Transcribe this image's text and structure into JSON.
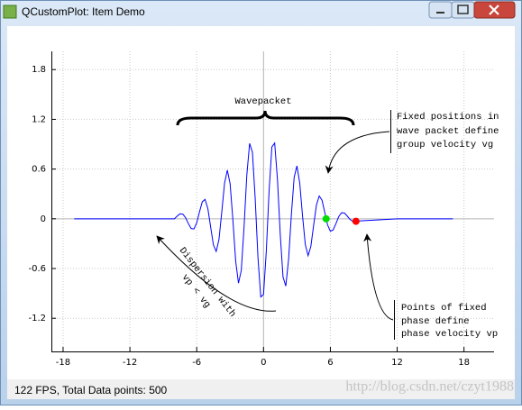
{
  "window": {
    "title": "QCustomPlot: Item Demo"
  },
  "chart_data": {
    "type": "line",
    "x": [
      -17,
      -12,
      -8,
      -7.75,
      -7.5,
      -7.25,
      -7,
      -6.75,
      -6.5,
      -6.25,
      -6,
      -5.75,
      -5.5,
      -5.25,
      -5,
      -4.75,
      -4.5,
      -4.25,
      -4,
      -3.75,
      -3.5,
      -3.25,
      -3,
      -2.75,
      -2.5,
      -2.25,
      -2,
      -1.75,
      -1.5,
      -1.25,
      -1,
      -0.75,
      -0.5,
      -0.25,
      0,
      0.25,
      0.5,
      0.75,
      1,
      1.25,
      1.5,
      1.75,
      2,
      2.25,
      2.5,
      2.75,
      3,
      3.25,
      3.5,
      3.75,
      4,
      4.25,
      4.5,
      4.75,
      5,
      5.25,
      5.5,
      5.75,
      6,
      6.25,
      6.5,
      6.75,
      7,
      7.25,
      7.5,
      7.75,
      8,
      12,
      17
    ],
    "values": [
      0,
      0,
      -0.001,
      0.033,
      0.06,
      0.057,
      0.014,
      -0.057,
      -0.118,
      -0.123,
      -0.049,
      0.083,
      0.205,
      0.234,
      0.123,
      -0.098,
      -0.316,
      -0.394,
      -0.248,
      0.082,
      0.43,
      0.587,
      0.423,
      -0.017,
      -0.512,
      -0.776,
      -0.624,
      -0.1,
      0.529,
      0.909,
      0.805,
      0.248,
      -0.467,
      -0.943,
      -0.913,
      -0.388,
      0.34,
      0.867,
      0.914,
      0.476,
      -0.186,
      -0.702,
      -0.811,
      -0.489,
      0.05,
      0.5,
      0.638,
      0.433,
      0.04,
      -0.31,
      -0.445,
      -0.333,
      -0.077,
      0.165,
      0.275,
      0.225,
      0.077,
      -0.073,
      -0.15,
      -0.135,
      -0.058,
      0.026,
      0.073,
      0.071,
      0.036,
      -0.005,
      -0.031,
      0,
      0
    ],
    "color": "#0000ff",
    "xlim": [
      -19.05,
      20.7
    ],
    "ylim": [
      -1.6,
      2.02
    ],
    "xticks": [
      -18,
      -12,
      -6,
      0,
      6,
      12,
      18
    ],
    "yticks": [
      -1.2,
      -0.6,
      0,
      0.6,
      1.2,
      1.8
    ],
    "grid": true,
    "tracers": [
      {
        "x": 5.62,
        "y": 0,
        "color": "#00dd00"
      },
      {
        "x": 8.3,
        "y": -0.03,
        "color": "#ff0000"
      }
    ],
    "annotations": {
      "wavepacket": "Wavepacket",
      "group_velocity": [
        "Fixed positions in",
        "wave packet define",
        "group velocity vg"
      ],
      "phase_velocity": [
        "Points of fixed",
        "phase define",
        "phase velocity vp"
      ],
      "dispersion": [
        "Dispersion with",
        "vp < vg"
      ]
    }
  },
  "status_bar": "122 FPS, Total Data points: 500",
  "watermark": "http://blog.csdn.net/czyt1988"
}
